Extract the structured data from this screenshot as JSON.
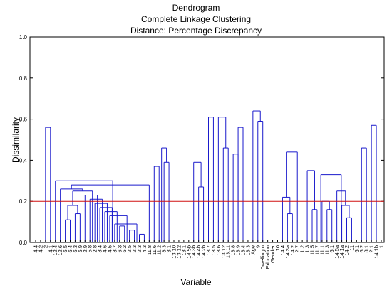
{
  "chart_data": {
    "type": "dendrogram",
    "title": "Dendrogram",
    "subtitle1": "Complete Linkage Clustering",
    "subtitle2": "Distance: Percentage Discrepancy",
    "xlabel": "Variable",
    "ylabel": "Dissimilarity",
    "ylim": [
      0,
      1.0
    ],
    "yticks": [
      "0.0",
      "0.2",
      "0.4",
      "0.6",
      "0.8",
      "1.0"
    ],
    "cut_line": {
      "value": 0.2,
      "color": "#d01010"
    },
    "line_color": "#1a1acc",
    "leaves": [
      "4.4",
      "4.2",
      "2",
      "4.1",
      "12.4",
      "12.6",
      "6.5",
      "6.4",
      "6.3",
      "5.9",
      "2.9",
      "5.8",
      "2.8",
      "8.4",
      "4.6",
      "4.5",
      "8.7",
      "6.3",
      "6.2",
      "2.5",
      "2.3",
      "2.3",
      "4.3",
      "11.8",
      "11.6",
      "11.2",
      "8.3",
      "3.1",
      "13.10",
      "13.12",
      "13.1",
      "14.5b",
      "14.3b",
      "14.4b",
      "14.2b",
      "13.7",
      "13.5",
      "13.6",
      "13.12",
      "13.11",
      "13.8",
      "13.9",
      "13.4",
      "13.3",
      "Age",
      "9",
      "Dwelling n",
      "Education",
      "Gender",
      "10",
      "14.4",
      "14.3a",
      "14.2",
      "2.7",
      "1.2",
      "1.3",
      "11.5",
      "11.7",
      "11.1",
      "11.3",
      "6.1",
      "14.5a",
      "14.1a",
      "14.2",
      "11",
      "6.1",
      "6.2",
      "8.1",
      "2.1",
      "14.1b",
      "1"
    ],
    "merges": [
      {
        "a": [
          19,
          20
        ],
        "h": 0.06
      },
      {
        "a": [
          21,
          22
        ],
        "h": 0.04
      },
      {
        "a": [
          63,
          64
        ],
        "h": 0.12
      },
      {
        "a": [
          6,
          7
        ],
        "h": 0.11
      },
      {
        "a": [
          17,
          18
        ],
        "h": 0.08
      },
      {
        "a": [
          16,
          20.5
        ],
        "h": 0.09
      },
      {
        "a": [
          15,
          18.5
        ],
        "h": 0.13
      },
      {
        "a": [
          14,
          16.5
        ],
        "h": 0.15
      },
      {
        "a": [
          13,
          15.5
        ],
        "h": 0.17
      },
      {
        "a": [
          12,
          14.5
        ],
        "h": 0.19
      },
      {
        "a": [
          11,
          13.5
        ],
        "h": 0.21
      },
      {
        "a": [
          8,
          9
        ],
        "h": 0.14
      },
      {
        "a": [
          6.5,
          8.5
        ],
        "h": 0.18
      },
      {
        "a": [
          10,
          12.5
        ],
        "h": 0.23
      },
      {
        "a": [
          7.5,
          11.5
        ],
        "h": 0.25
      },
      {
        "a": [
          5,
          9.5
        ],
        "h": 0.26
      },
      {
        "a": [
          23,
          7.25
        ],
        "h": 0.28
      },
      {
        "a": [
          4,
          15.6
        ],
        "h": 0.3
      },
      {
        "a": [
          59,
          60
        ],
        "h": 0.16
      },
      {
        "a": [
          58,
          59.5
        ],
        "h": 0.2
      },
      {
        "a": [
          62,
          63.5
        ],
        "h": 0.18
      },
      {
        "a": [
          61,
          62.75
        ],
        "h": 0.25
      },
      {
        "a": [
          51,
          52
        ],
        "h": 0.14
      },
      {
        "a": [
          50,
          51.5
        ],
        "h": 0.22
      },
      {
        "a": [
          56,
          57
        ],
        "h": 0.16
      },
      {
        "a": [
          55,
          56.5
        ],
        "h": 0.35
      },
      {
        "a": [
          57.75,
          61.9
        ],
        "h": 0.33
      },
      {
        "a": [
          53,
          50.75
        ],
        "h": 0.44
      },
      {
        "a": [
          24,
          25
        ],
        "h": 0.37
      },
      {
        "a": [
          26,
          27
        ],
        "h": 0.39
      },
      {
        "a": [
          25.5,
          26.5
        ],
        "h": 0.46
      },
      {
        "a": [
          33,
          34
        ],
        "h": 0.27
      },
      {
        "a": [
          32,
          33.5
        ],
        "h": 0.39
      },
      {
        "a": [
          38,
          39
        ],
        "h": 0.46
      },
      {
        "a": [
          40,
          41
        ],
        "h": 0.43
      },
      {
        "a": [
          41,
          42
        ],
        "h": 0.56
      },
      {
        "a": [
          2,
          3
        ],
        "h": 0.56
      },
      {
        "a": [
          35,
          36
        ],
        "h": 0.61
      },
      {
        "a": [
          37,
          38.5
        ],
        "h": 0.61
      },
      {
        "a": [
          45,
          46
        ],
        "h": 0.59
      },
      {
        "a": [
          44,
          45.5
        ],
        "h": 0.64
      },
      {
        "a": [
          66,
          67
        ],
        "h": 0.46
      },
      {
        "a": [
          68,
          69
        ],
        "h": 0.57
      }
    ]
  }
}
